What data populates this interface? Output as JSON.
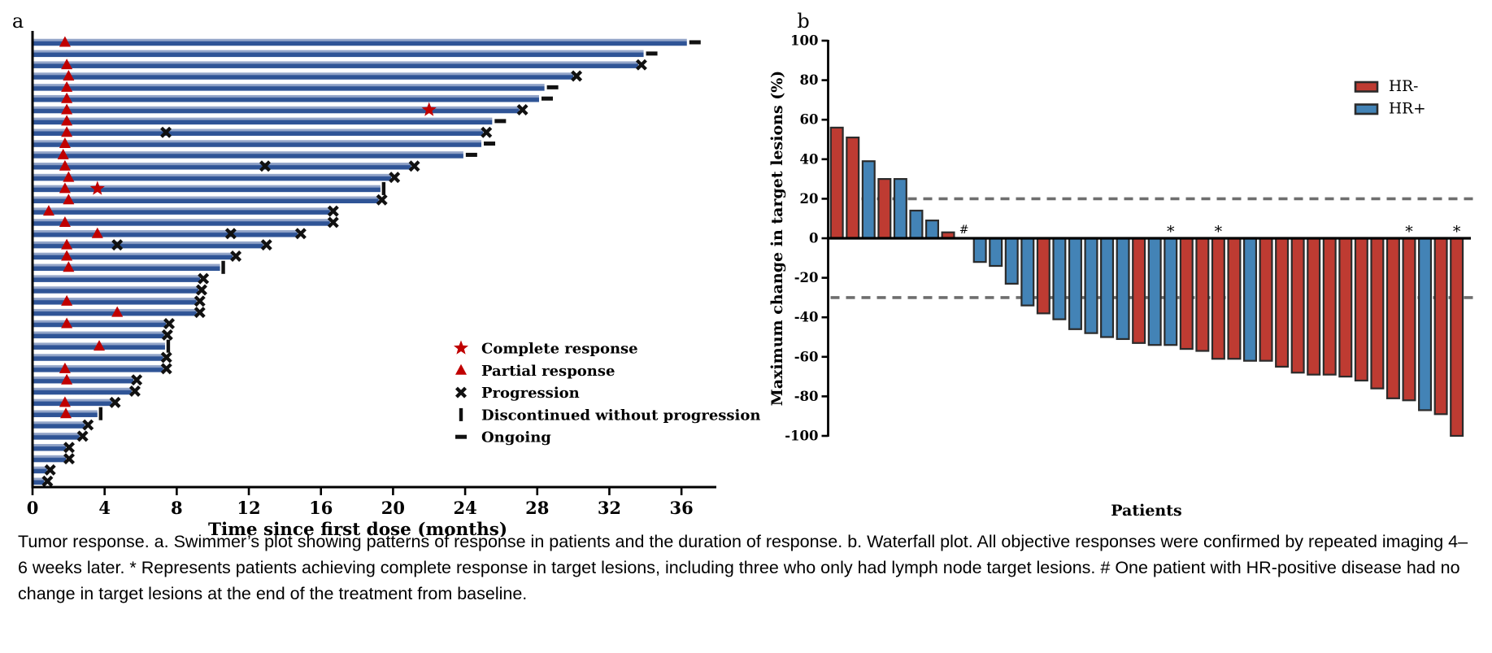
{
  "caption": {
    "text": "Tumor response. a. Swimmer’s plot showing patterns of response in patients and the duration of response. b. Waterfall plot. All objective responses were confirmed by repeated imaging 4–6 weeks later. * Represents patients achieving complete response in target lesions, including three who only had lymph node target lesions. # One patient with HR-positive disease had no change in target lesions at the end of the treatment from baseline."
  },
  "chart_data": [
    {
      "id": "swimmer",
      "type": "bar",
      "orientation": "horizontal",
      "panel_label": "a",
      "xlabel": "Time since first dose (months)",
      "xticks": [
        0,
        4,
        8,
        12,
        16,
        20,
        24,
        28,
        32,
        36
      ],
      "xlim": [
        0,
        38
      ],
      "grid": false,
      "bar_color": "#2f5496",
      "bar_highlight": "#93a5c9",
      "marker_red": "#c00000",
      "marker_black": "#111111",
      "legend_position": "inside-right",
      "legend": [
        {
          "symbol": "star",
          "label": "Complete response"
        },
        {
          "symbol": "triangle",
          "label": "Partial response"
        },
        {
          "symbol": "x",
          "label": "Progression"
        },
        {
          "symbol": "vbar",
          "label": "Discontinued without progression"
        },
        {
          "symbol": "dash",
          "label": "Ongoing"
        }
      ],
      "patients": [
        {
          "months": 36.3,
          "pr": 1.8,
          "ongoing": true
        },
        {
          "months": 33.9,
          "ongoing": true
        },
        {
          "months": 33.6,
          "pr": 1.9,
          "prog": [
            33.6
          ]
        },
        {
          "months": 30.0,
          "pr": 2.0,
          "prog": [
            30.0
          ]
        },
        {
          "months": 28.4,
          "pr": 1.9,
          "ongoing": true
        },
        {
          "months": 28.1,
          "pr": 1.9,
          "ongoing": true
        },
        {
          "months": 27.0,
          "pr": 1.9,
          "cr": 22.0,
          "prog": [
            27.0
          ]
        },
        {
          "months": 25.5,
          "pr": 1.9,
          "ongoing": true
        },
        {
          "months": 25.0,
          "pr": 1.9,
          "prog": [
            7.4,
            25.0
          ]
        },
        {
          "months": 24.9,
          "pr": 1.8,
          "ongoing": true
        },
        {
          "months": 23.9,
          "pr": 1.7,
          "ongoing": true
        },
        {
          "months": 21.0,
          "pr": 1.8,
          "prog": [
            12.9,
            21.0
          ]
        },
        {
          "months": 19.9,
          "pr": 2.0,
          "prog": [
            19.9
          ]
        },
        {
          "months": 19.3,
          "pr": 1.8,
          "cr": 3.6,
          "disc": 19.3
        },
        {
          "months": 19.2,
          "pr": 2.0,
          "prog": [
            19.2
          ]
        },
        {
          "months": 16.5,
          "pr": 0.9,
          "prog": [
            16.5
          ]
        },
        {
          "months": 16.5,
          "pr": 1.8,
          "prog": [
            16.5
          ]
        },
        {
          "months": 14.7,
          "pr": 3.6,
          "prog": [
            11.0,
            14.7
          ]
        },
        {
          "months": 12.8,
          "pr": 1.9,
          "prog": [
            4.7,
            12.8
          ]
        },
        {
          "months": 11.1,
          "pr": 1.9,
          "prog": [
            11.1
          ]
        },
        {
          "months": 10.4,
          "pr": 2.0,
          "disc": 10.4
        },
        {
          "months": 9.3,
          "prog": [
            9.3
          ]
        },
        {
          "months": 9.2,
          "prog": [
            9.2
          ]
        },
        {
          "months": 9.1,
          "pr": 1.9,
          "prog": [
            9.1
          ]
        },
        {
          "months": 9.1,
          "pr": 4.7,
          "prog": [
            9.1
          ]
        },
        {
          "months": 7.4,
          "pr": 1.9,
          "prog": [
            7.4
          ]
        },
        {
          "months": 7.3,
          "prog": [
            7.3
          ]
        },
        {
          "months": 7.35,
          "pr": 3.7,
          "disc": 7.35
        },
        {
          "months": 7.25,
          "prog": [
            7.25
          ]
        },
        {
          "months": 7.25,
          "pr": 1.8,
          "prog": [
            7.25
          ]
        },
        {
          "months": 5.6,
          "pr": 1.9,
          "prog": [
            5.6
          ]
        },
        {
          "months": 5.5,
          "prog": [
            5.5
          ]
        },
        {
          "months": 4.4,
          "pr": 1.8,
          "prog": [
            4.4
          ]
        },
        {
          "months": 3.6,
          "pr": 1.85,
          "disc": 3.6
        },
        {
          "months": 2.9,
          "prog": [
            2.9
          ]
        },
        {
          "months": 2.6,
          "prog": [
            2.6
          ]
        },
        {
          "months": 1.85,
          "prog": [
            1.85
          ]
        },
        {
          "months": 1.85,
          "prog": [
            1.85
          ]
        },
        {
          "months": 0.8,
          "prog": [
            0.8
          ]
        },
        {
          "months": 0.65,
          "prog": [
            0.65
          ]
        }
      ]
    },
    {
      "id": "waterfall",
      "type": "bar",
      "orientation": "vertical",
      "panel_label": "b",
      "ylabel": "Maximum change in target lesions (%)",
      "xlabel": "Patients",
      "yticks": [
        100,
        80,
        60,
        40,
        20,
        0,
        -20,
        -40,
        -60,
        -80,
        -100
      ],
      "ylim": [
        -100,
        100
      ],
      "grid": false,
      "reference_lines": [
        20,
        -30
      ],
      "reference_line_color": "#6e6e6e",
      "outline_color": "#2b2b2b",
      "legend_position": "inside-top-right",
      "legend": [
        {
          "label": "HR-",
          "color": "#be3b32"
        },
        {
          "label": "HR+",
          "color": "#4383b6"
        }
      ],
      "series_colors": {
        "HR-": "#be3b32",
        "HR+": "#4383b6"
      },
      "patients": [
        {
          "value": 56,
          "hr": "HR-"
        },
        {
          "value": 51,
          "hr": "HR-"
        },
        {
          "value": 39,
          "hr": "HR+"
        },
        {
          "value": 30,
          "hr": "HR-"
        },
        {
          "value": 30,
          "hr": "HR+"
        },
        {
          "value": 14,
          "hr": "HR+"
        },
        {
          "value": 9,
          "hr": "HR+"
        },
        {
          "value": 3,
          "hr": "HR-"
        },
        {
          "value": 0,
          "hr": "HR+",
          "mark": "#"
        },
        {
          "value": -12,
          "hr": "HR+"
        },
        {
          "value": -14,
          "hr": "HR+"
        },
        {
          "value": -23,
          "hr": "HR+"
        },
        {
          "value": -34,
          "hr": "HR+"
        },
        {
          "value": -38,
          "hr": "HR-"
        },
        {
          "value": -41,
          "hr": "HR+"
        },
        {
          "value": -46,
          "hr": "HR+"
        },
        {
          "value": -48,
          "hr": "HR+"
        },
        {
          "value": -50,
          "hr": "HR+"
        },
        {
          "value": -51,
          "hr": "HR+"
        },
        {
          "value": -53,
          "hr": "HR-"
        },
        {
          "value": -54,
          "hr": "HR+"
        },
        {
          "value": -54,
          "hr": "HR+",
          "mark": "*"
        },
        {
          "value": -56,
          "hr": "HR-"
        },
        {
          "value": -57,
          "hr": "HR-"
        },
        {
          "value": -61,
          "hr": "HR-",
          "mark": "*"
        },
        {
          "value": -61,
          "hr": "HR-"
        },
        {
          "value": -62,
          "hr": "HR+"
        },
        {
          "value": -62,
          "hr": "HR-"
        },
        {
          "value": -65,
          "hr": "HR-"
        },
        {
          "value": -68,
          "hr": "HR-"
        },
        {
          "value": -69,
          "hr": "HR-"
        },
        {
          "value": -69,
          "hr": "HR-"
        },
        {
          "value": -70,
          "hr": "HR-"
        },
        {
          "value": -72,
          "hr": "HR-"
        },
        {
          "value": -76,
          "hr": "HR-"
        },
        {
          "value": -81,
          "hr": "HR-"
        },
        {
          "value": -82,
          "hr": "HR-",
          "mark": "*"
        },
        {
          "value": -87,
          "hr": "HR+"
        },
        {
          "value": -89,
          "hr": "HR-"
        },
        {
          "value": -100,
          "hr": "HR-",
          "mark": "*"
        }
      ]
    }
  ]
}
